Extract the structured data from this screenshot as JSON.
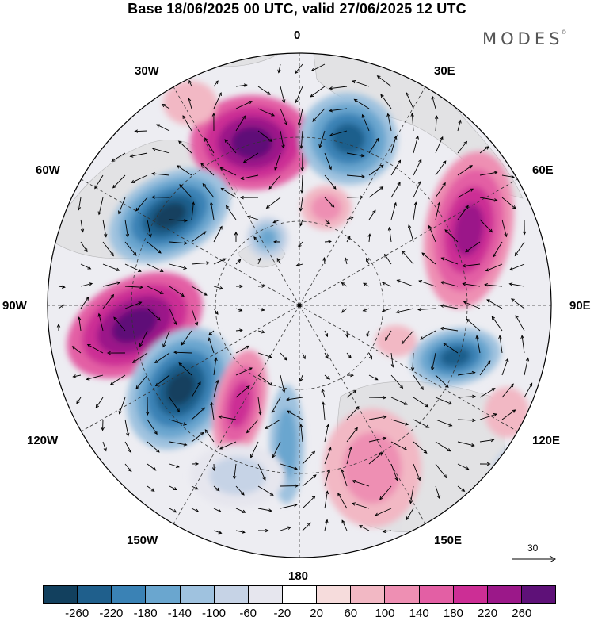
{
  "title": "Base 18/06/2025 00 UTC, valid 27/06/2025 12 UTC",
  "brand": "MODES",
  "brand_mark": "©",
  "longitude_labels": {
    "lon_0": "0",
    "lon_30e": "30E",
    "lon_60e": "60E",
    "lon_90e": "90E",
    "lon_120e": "120E",
    "lon_150e": "150E",
    "lon_180": "180",
    "lon_150w": "150W",
    "lon_120w": "120W",
    "lon_90w": "90W",
    "lon_60w": "60W",
    "lon_30w": "30W"
  },
  "colorbar": {
    "colors": [
      "#12405e",
      "#1f5f8c",
      "#3a82b5",
      "#6aa6cf",
      "#9fc2df",
      "#c6d3e6",
      "#e6e6ee",
      "#ffffff",
      "#f6dcdc",
      "#f2b8c4",
      "#ee8fb3",
      "#e35fa4",
      "#cc2e95",
      "#9b1889",
      "#5e1178"
    ],
    "labels": [
      "-260",
      "-220",
      "-180",
      "-140",
      "-100",
      "-60",
      "-20",
      "20",
      "60",
      "100",
      "140",
      "180",
      "220",
      "260"
    ]
  },
  "reference_vector": {
    "label": "30"
  },
  "map_colors": {
    "background": "#ededf2",
    "land": "#d9d9d9",
    "coast": "#8a8a8a",
    "gridline": "#333333",
    "arrow": "#000000"
  }
}
